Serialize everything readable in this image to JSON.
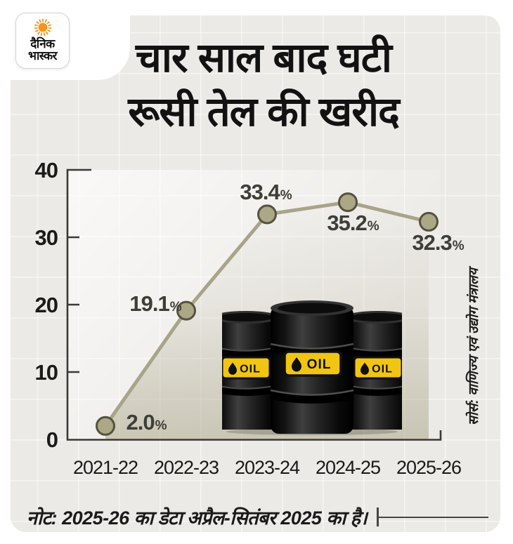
{
  "brand": {
    "logo_line1": "दैनिक",
    "logo_line2": "भास्कर"
  },
  "title": {
    "line1": "चार साल बाद घटी",
    "line2": "रूसी तेल की खरीद"
  },
  "chart_data": {
    "type": "line",
    "title": "चार साल बाद घटी रूसी तेल की खरीद",
    "categories": [
      "2021-22",
      "2022-23",
      "2023-24",
      "2024-25",
      "2025-26"
    ],
    "values": [
      2.0,
      19.1,
      33.4,
      35.2,
      32.3
    ],
    "point_labels": [
      "2.0%",
      "19.1%",
      "33.4%",
      "35.2%",
      "32.3%"
    ],
    "unit": "%",
    "xlabel": "",
    "ylabel": "",
    "ylim": [
      0,
      40
    ],
    "yticks": [
      0,
      10,
      20,
      30,
      40
    ],
    "grid": true,
    "legend": "none",
    "line_color": "#a8a489",
    "marker_fill": "#aca785",
    "marker_stroke": "#54523f",
    "area_color": "#a7a386",
    "axis_color": "#3a3936"
  },
  "illustration": {
    "name": "oil-barrels",
    "barrel_label": "OIL"
  },
  "source_text": "सोर्स: वाणिज्य एवं उद्योग मंत्रालय",
  "note_text": "नोट: 2025-26 का डेटा अप्रैल-सितंबर 2025 का है।",
  "colors": {
    "page_bg": "#ffffff",
    "card_bg": "#eceae6",
    "title_text": "#121212",
    "data_label": "#3d3e37",
    "sun_orange": "#f7941e",
    "barrel_yellow": "#f0c513"
  }
}
